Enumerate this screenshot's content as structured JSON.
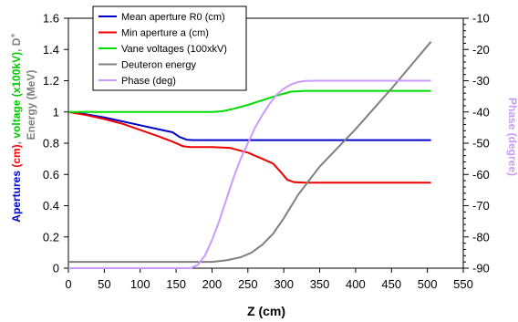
{
  "chart_data": {
    "type": "line",
    "xlabel": "Z (cm)",
    "ylabel_left_parts": [
      {
        "text": "Apertures ",
        "color": "#0000cc"
      },
      {
        "text": "(cm)",
        "color": "#ff0000"
      },
      {
        "text": ", ",
        "color": "#808080"
      },
      {
        "text": "voltage (x100kV)",
        "color": "#00cc00"
      },
      {
        "text": ", D",
        "color": "#808080"
      },
      {
        "text": "+",
        "color": "#808080"
      }
    ],
    "ylabel_left_line2": "Energy (MeV)",
    "ylabel_right": "Phase (degree)",
    "xlim": [
      0,
      550
    ],
    "xticks": [
      "0",
      "50",
      "100",
      "150",
      "200",
      "250",
      "300",
      "350",
      "400",
      "450",
      "500",
      "550"
    ],
    "ylim_left": [
      0,
      1.6
    ],
    "yticks_left": [
      "0",
      "0.2",
      "0.4",
      "0.6",
      "0.8",
      "1",
      "1.2",
      "1.4",
      "1.6"
    ],
    "ylim_right": [
      -90,
      -10
    ],
    "yticks_right": [
      "-90",
      "-80",
      "-70",
      "-60",
      "-50",
      "-40",
      "-30",
      "-20",
      "-10"
    ],
    "grid": false,
    "legend_position": "top-left",
    "series": [
      {
        "name": "Mean aperture R0 (cm)",
        "color": "#0000cc",
        "axis": "left",
        "x": [
          0,
          25,
          50,
          75,
          100,
          125,
          145,
          155,
          165,
          175,
          200,
          300,
          400,
          505
        ],
        "y": [
          1.0,
          0.985,
          0.965,
          0.94,
          0.915,
          0.89,
          0.87,
          0.84,
          0.822,
          0.82,
          0.82,
          0.82,
          0.82,
          0.82
        ]
      },
      {
        "name": "Min aperture a (cm)",
        "color": "#ee0000",
        "axis": "left",
        "x": [
          0,
          25,
          50,
          75,
          100,
          125,
          145,
          160,
          170,
          200,
          225,
          250,
          270,
          285,
          295,
          305,
          315,
          330,
          400,
          505
        ],
        "y": [
          1.0,
          0.98,
          0.955,
          0.925,
          0.885,
          0.845,
          0.81,
          0.78,
          0.775,
          0.775,
          0.77,
          0.74,
          0.7,
          0.67,
          0.62,
          0.565,
          0.55,
          0.548,
          0.548,
          0.548
        ]
      },
      {
        "name": "Vane voltages (100xkV)",
        "color": "#00dd00",
        "axis": "left",
        "x": [
          0,
          100,
          200,
          215,
          230,
          250,
          270,
          290,
          310,
          330,
          400,
          505
        ],
        "y": [
          1.0,
          1.0,
          1.0,
          1.005,
          1.02,
          1.045,
          1.075,
          1.105,
          1.13,
          1.135,
          1.135,
          1.135
        ]
      },
      {
        "name": "Deuteron energy",
        "color": "#808080",
        "axis": "left",
        "x": [
          0,
          150,
          200,
          220,
          240,
          255,
          270,
          285,
          300,
          320,
          350,
          400,
          450,
          505
        ],
        "y": [
          0.04,
          0.04,
          0.04,
          0.05,
          0.07,
          0.1,
          0.15,
          0.22,
          0.32,
          0.47,
          0.65,
          0.89,
          1.15,
          1.45
        ]
      },
      {
        "name": "Phase (deg)",
        "color": "#cc99ff",
        "axis": "right",
        "x": [
          0,
          170,
          180,
          190,
          200,
          210,
          220,
          230,
          240,
          250,
          260,
          270,
          280,
          290,
          300,
          310,
          320,
          330,
          345,
          400,
          505
        ],
        "y": [
          -90,
          -90,
          -89,
          -86,
          -81,
          -75,
          -68,
          -61,
          -55,
          -50,
          -45,
          -41,
          -37.5,
          -34.5,
          -32.5,
          -31.2,
          -30.4,
          -30.1,
          -30,
          -30,
          -30
        ]
      }
    ]
  }
}
